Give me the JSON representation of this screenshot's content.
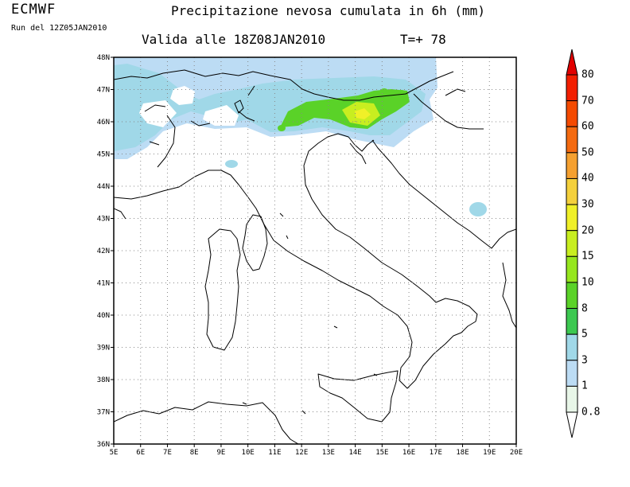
{
  "header": {
    "brand": "ECMWF",
    "run": "Run del 12Z05JAN2010",
    "title": "Precipitazione nevosa cumulata in 6h (mm)",
    "valid": "Valida alle 18Z08JAN2010",
    "timestep": "T=+ 78"
  },
  "map": {
    "lon_labels": [
      "5E",
      "6E",
      "7E",
      "8E",
      "9E",
      "10E",
      "11E",
      "12E",
      "13E",
      "14E",
      "15E",
      "16E",
      "17E",
      "18E",
      "19E",
      "20E"
    ],
    "lat_labels": [
      "48N",
      "47N",
      "46N",
      "45N",
      "44N",
      "43N",
      "42N",
      "41N",
      "40N",
      "39N",
      "38N",
      "37N",
      "36N"
    ],
    "grid": "dotted",
    "region": "Italy"
  },
  "legend": {
    "levels": [
      "80",
      "70",
      "60",
      "50",
      "40",
      "30",
      "20",
      "15",
      "10",
      "8",
      "5",
      "3",
      "1",
      "0.8"
    ],
    "colors": [
      "#e10000",
      "#f21e00",
      "#f44a00",
      "#f46a10",
      "#f5a030",
      "#f4d03c",
      "#f0f028",
      "#c8ee20",
      "#96e61e",
      "#5ad228",
      "#3cc850",
      "#a0d8e8",
      "#bcdcf4",
      "#e8f6e8"
    ]
  }
}
